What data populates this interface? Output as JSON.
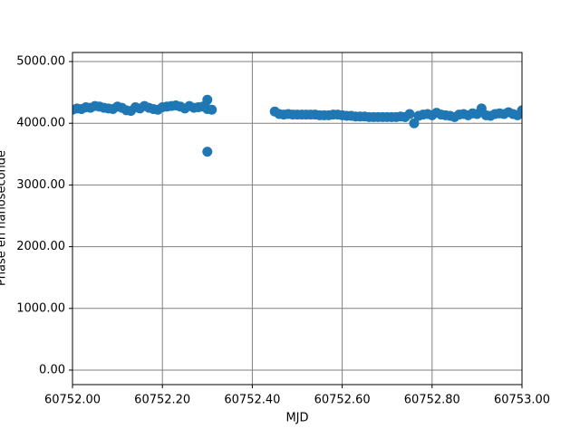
{
  "chart_data": {
    "type": "scatter",
    "x_label": "MJD",
    "y_label": "Phase en nanoseconde",
    "color": "#1f77b4",
    "grid": true,
    "xlim": [
      60752.0,
      60753.0
    ],
    "ylim": [
      -235,
      5147
    ],
    "xticks": [
      {
        "value": 60752.0,
        "label": "60752.00"
      },
      {
        "value": 60752.2,
        "label": "60752.20"
      },
      {
        "value": 60752.4,
        "label": "60752.40"
      },
      {
        "value": 60752.6,
        "label": "60752.60"
      },
      {
        "value": 60752.8,
        "label": "60752.80"
      },
      {
        "value": 60753.0,
        "label": "60753.00"
      }
    ],
    "yticks": [
      {
        "value": 0,
        "label": "0.00"
      },
      {
        "value": 1000,
        "label": "1000.00"
      },
      {
        "value": 2000,
        "label": "2000.00"
      },
      {
        "value": 3000,
        "label": "3000.00"
      },
      {
        "value": 4000,
        "label": "4000.00"
      },
      {
        "value": 5000,
        "label": "5000.00"
      }
    ],
    "x": [
      60752.0,
      60752.01,
      60752.02,
      60752.03,
      60752.04,
      60752.05,
      60752.06,
      60752.07,
      60752.08,
      60752.09,
      60752.1,
      60752.11,
      60752.12,
      60752.13,
      60752.14,
      60752.15,
      60752.16,
      60752.17,
      60752.18,
      60752.19,
      60752.2,
      60752.21,
      60752.22,
      60752.23,
      60752.24,
      60752.25,
      60752.26,
      60752.27,
      60752.28,
      60752.29,
      60752.3,
      60752.31,
      60752.3,
      60752.3,
      60752.45,
      60752.46,
      60752.47,
      60752.48,
      60752.49,
      60752.5,
      60752.51,
      60752.52,
      60752.53,
      60752.54,
      60752.55,
      60752.56,
      60752.57,
      60752.58,
      60752.59,
      60752.6,
      60752.61,
      60752.62,
      60752.63,
      60752.64,
      60752.65,
      60752.66,
      60752.67,
      60752.68,
      60752.69,
      60752.7,
      60752.71,
      60752.72,
      60752.73,
      60752.74,
      60752.75,
      60752.76,
      60752.77,
      60752.78,
      60752.79,
      60752.8,
      60752.81,
      60752.82,
      60752.83,
      60752.84,
      60752.85,
      60752.86,
      60752.87,
      60752.88,
      60752.89,
      60752.9,
      60752.91,
      60752.92,
      60752.93,
      60752.94,
      60752.95,
      60752.96,
      60752.97,
      60752.98,
      60752.99,
      60753.0
    ],
    "values": [
      4220,
      4240,
      4230,
      4260,
      4250,
      4280,
      4270,
      4250,
      4240,
      4230,
      4270,
      4250,
      4210,
      4200,
      4260,
      4240,
      4280,
      4250,
      4230,
      4220,
      4260,
      4270,
      4280,
      4290,
      4270,
      4240,
      4280,
      4250,
      4260,
      4270,
      4230,
      4220,
      3540,
      4380,
      4190,
      4150,
      4140,
      4150,
      4140,
      4140,
      4140,
      4140,
      4140,
      4140,
      4130,
      4130,
      4130,
      4140,
      4140,
      4130,
      4120,
      4120,
      4110,
      4110,
      4110,
      4100,
      4100,
      4100,
      4100,
      4100,
      4100,
      4100,
      4110,
      4100,
      4150,
      4000,
      4120,
      4140,
      4150,
      4130,
      4170,
      4140,
      4130,
      4120,
      4100,
      4140,
      4150,
      4130,
      4160,
      4150,
      4240,
      4130,
      4120,
      4150,
      4160,
      4150,
      4180,
      4150,
      4130,
      4210
    ]
  }
}
